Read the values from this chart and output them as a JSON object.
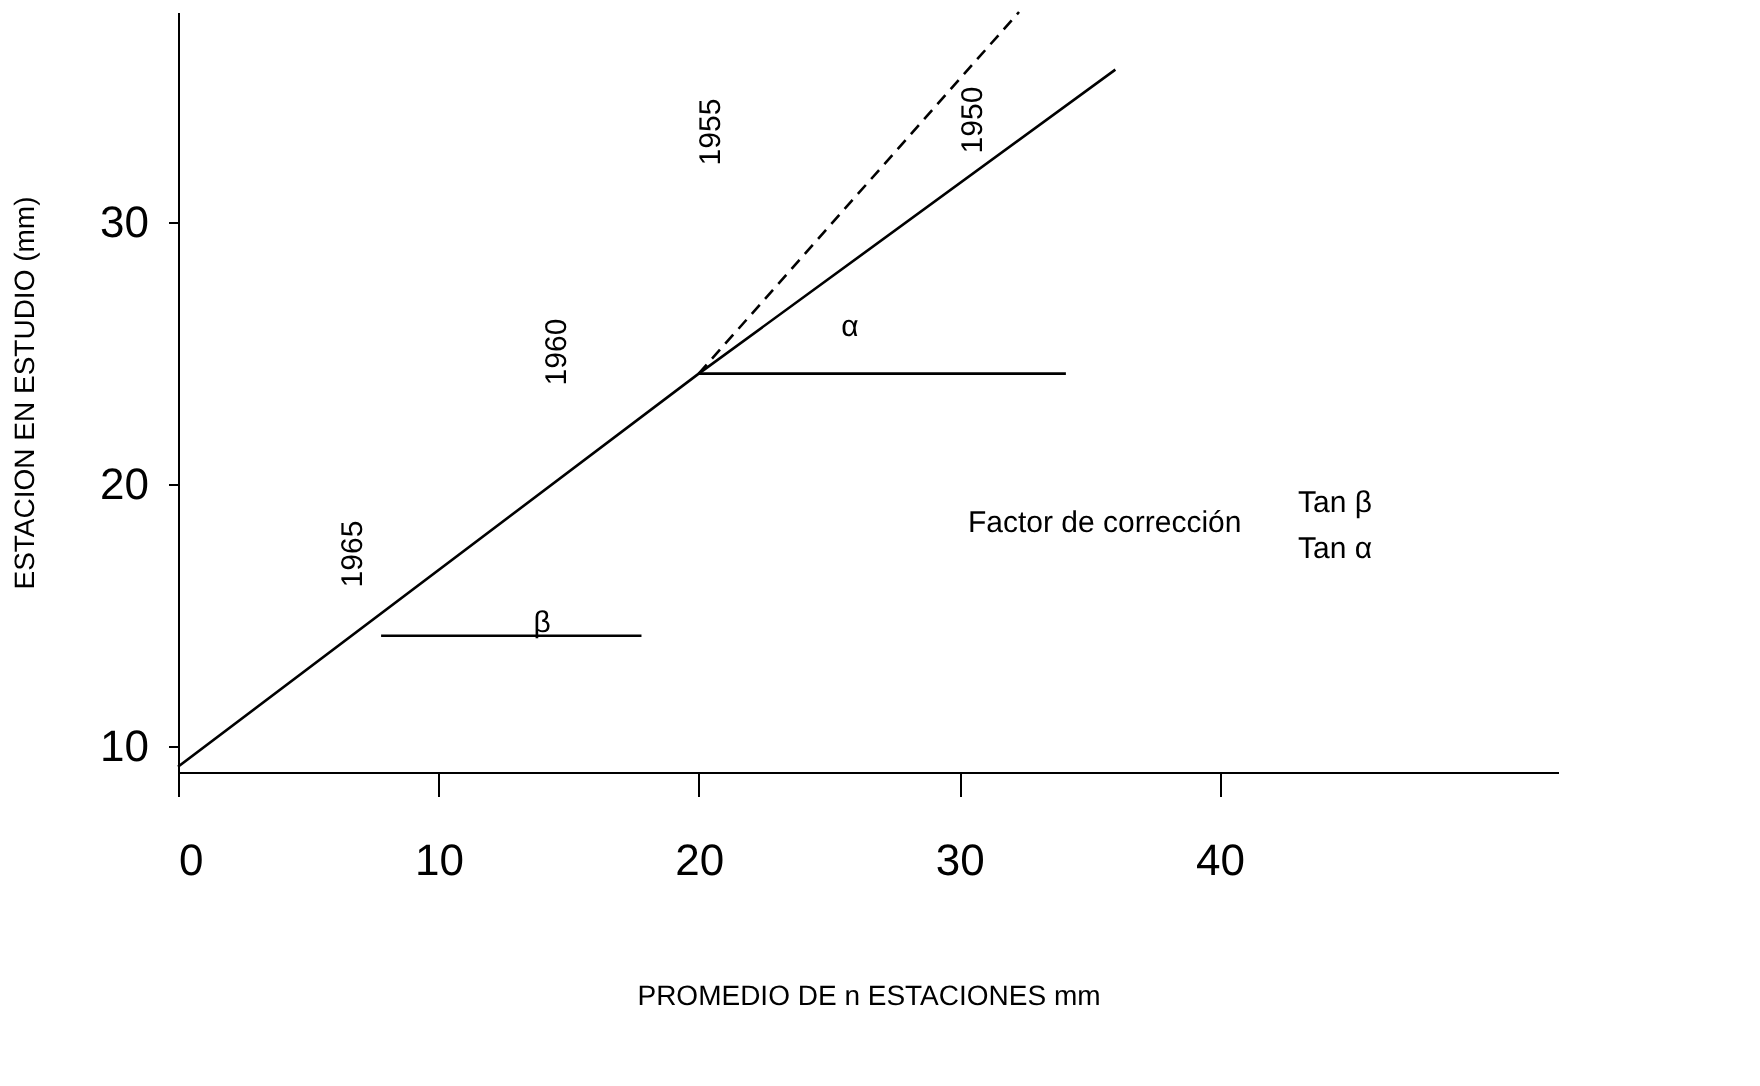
{
  "chart_data": {
    "type": "line",
    "xlabel": "PROMEDIO DE n ESTACIONES mm",
    "ylabel": "ESTACION  EN ESTUDIO (mm)",
    "xlim": [
      0,
      53
    ],
    "xticks": [
      0,
      10,
      20,
      30,
      40
    ],
    "ylim": [
      9,
      38
    ],
    "yticks": [
      10,
      20,
      30
    ],
    "grid": false,
    "series": [
      {
        "color": "#000000",
        "line_style": "solid",
        "x": [
          0,
          20,
          36
        ],
        "values": [
          9.2,
          24.2,
          35.8
        ]
      },
      {
        "color": "#000000",
        "line_style": "dashed",
        "x": [
          20,
          32.3
        ],
        "values": [
          24.2,
          38
        ]
      },
      {
        "color": "#000000",
        "line_style": "solid",
        "x": [
          7.8,
          17.8
        ],
        "values": [
          14.2,
          14.2
        ]
      },
      {
        "color": "#000000",
        "line_style": "solid",
        "x": [
          20,
          34.1
        ],
        "values": [
          24.2,
          24.2
        ]
      }
    ],
    "annotations": [
      "1965",
      "1960",
      "1955",
      "1950",
      "α",
      "β",
      "Factor de corrección",
      "Tan β",
      "Tan α"
    ]
  }
}
